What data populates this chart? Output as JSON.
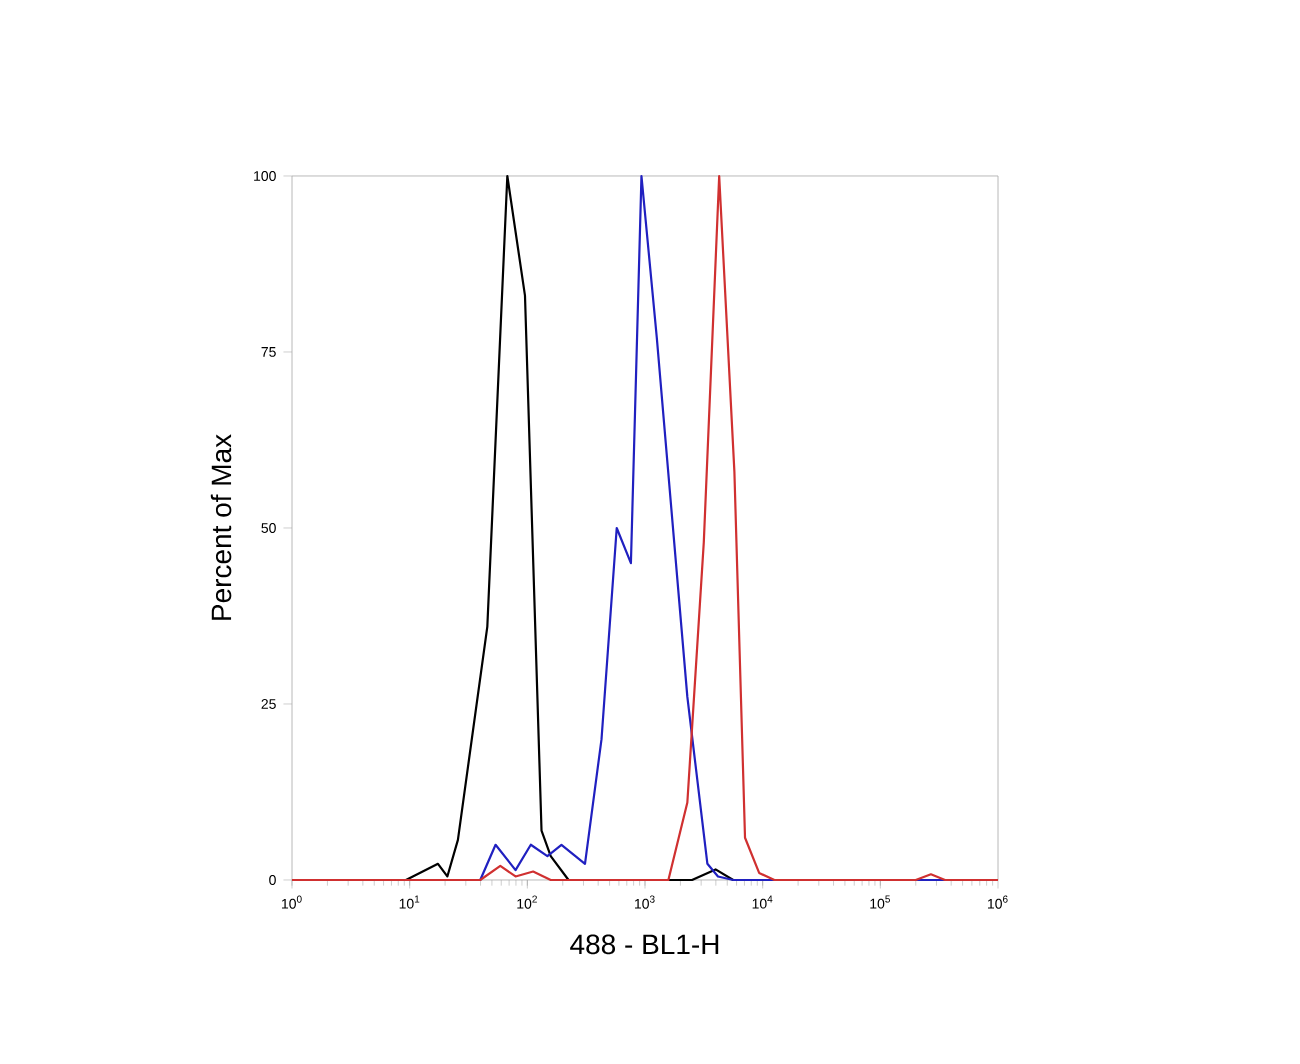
{
  "chart_data": {
    "type": "line",
    "xlabel": "488 - BL1-H",
    "ylabel": "Percent of Max",
    "log": "x",
    "xlim": [
      1,
      1000000
    ],
    "ylim": [
      0,
      100
    ],
    "xticks": [
      {
        "value": 1,
        "label": "10$^{0}$"
      },
      {
        "value": 10,
        "label": "10$^{1}$"
      },
      {
        "value": 100,
        "label": "10$^{2}$"
      },
      {
        "value": 1000,
        "label": "10$^{3}$"
      },
      {
        "value": 10000,
        "label": "10$^{4}$"
      },
      {
        "value": 100000,
        "label": "10$^{5}$"
      },
      {
        "value": 1000000,
        "label": "10$^{6}$"
      }
    ],
    "yticks": [
      0,
      25,
      50,
      75,
      100
    ],
    "grid": false,
    "marker": "none",
    "line_style": "solid",
    "series": [
      {
        "color": "#000000",
        "x": [
          1,
          9.3,
          17.4,
          20.9,
          25.7,
          45.7,
          67.6,
          95.5,
          132,
          158,
          224,
          2510,
          3980,
          5620,
          1000000
        ],
        "values": [
          0,
          0,
          2.3,
          0.5,
          5.7,
          36,
          100,
          83,
          7,
          3.4,
          0,
          0,
          1.5,
          0,
          0
        ]
      },
      {
        "color": "#2020c0",
        "x": [
          1,
          39.8,
          53.7,
          79.4,
          107,
          148,
          195,
          309,
          427,
          575,
          759,
          933,
          1260,
          2290,
          3390,
          4170,
          5620,
          1000000
        ],
        "values": [
          0,
          0,
          5,
          1.4,
          5,
          3.4,
          5,
          2.3,
          20,
          50,
          45,
          100,
          77,
          26,
          2.3,
          0.5,
          0,
          0
        ]
      },
      {
        "color": "#d03030",
        "x": [
          1,
          39.8,
          58.9,
          79.4,
          112,
          158,
          1580,
          2290,
          3160,
          4270,
          5750,
          7080,
          9330,
          12600,
          200000,
          269000,
          355000,
          1000000
        ],
        "values": [
          0,
          0,
          2,
          0.5,
          1.2,
          0,
          0,
          11,
          48,
          100,
          58,
          6,
          1,
          0,
          0,
          0.8,
          0,
          0
        ]
      }
    ]
  }
}
